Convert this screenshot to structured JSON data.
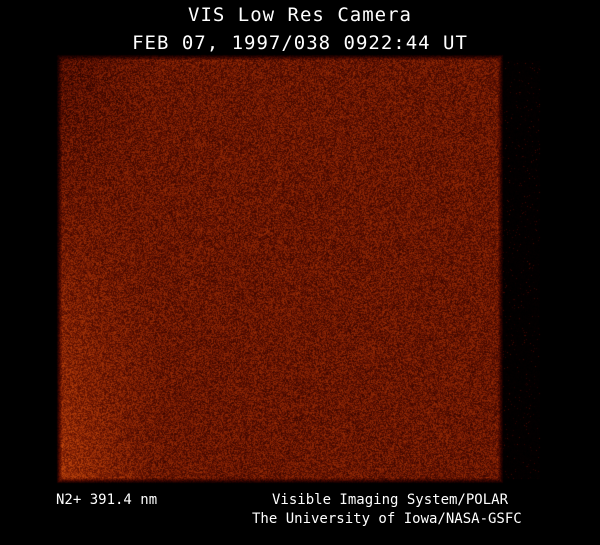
{
  "header": {
    "title": "VIS Low Res Camera",
    "datetime": "FEB 07, 1997/038 0922:44 UT"
  },
  "image": {
    "description_colormap": "black-red-orange",
    "base_color": "#7a2a08",
    "bright_color": "#d0700f"
  },
  "footer": {
    "filter": "N2+ 391.4 nm",
    "credit_line1": "Visible Imaging System/POLAR",
    "credit_line2": "The University of Iowa/NASA-GSFC"
  }
}
